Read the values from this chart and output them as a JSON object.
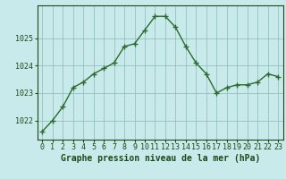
{
  "x": [
    0,
    1,
    2,
    3,
    4,
    5,
    6,
    7,
    8,
    9,
    10,
    11,
    12,
    13,
    14,
    15,
    16,
    17,
    18,
    19,
    20,
    21,
    22,
    23
  ],
  "y": [
    1021.6,
    1022.0,
    1022.5,
    1023.2,
    1023.4,
    1023.7,
    1023.9,
    1024.1,
    1024.7,
    1024.8,
    1025.3,
    1025.8,
    1025.8,
    1025.4,
    1024.7,
    1024.1,
    1023.7,
    1023.0,
    1023.2,
    1023.3,
    1023.3,
    1023.4,
    1023.7,
    1023.6
  ],
  "line_color": "#2d6a2d",
  "marker_color": "#2d6a2d",
  "bg_color": "#c8eaea",
  "plot_bg_color": "#c8eaea",
  "grid_color": "#8bbaba",
  "xlabel": "Graphe pression niveau de la mer (hPa)",
  "xlabel_color": "#1a4a1a",
  "tick_color": "#1a4a1a",
  "yticks": [
    1022,
    1023,
    1024,
    1025
  ],
  "xticks": [
    0,
    1,
    2,
    3,
    4,
    5,
    6,
    7,
    8,
    9,
    10,
    11,
    12,
    13,
    14,
    15,
    16,
    17,
    18,
    19,
    20,
    21,
    22,
    23
  ],
  "xlim": [
    -0.5,
    23.5
  ],
  "ylim": [
    1021.3,
    1026.2
  ],
  "marker_size": 4,
  "line_width": 1.0,
  "xlabel_fontsize": 7,
  "tick_fontsize": 6
}
